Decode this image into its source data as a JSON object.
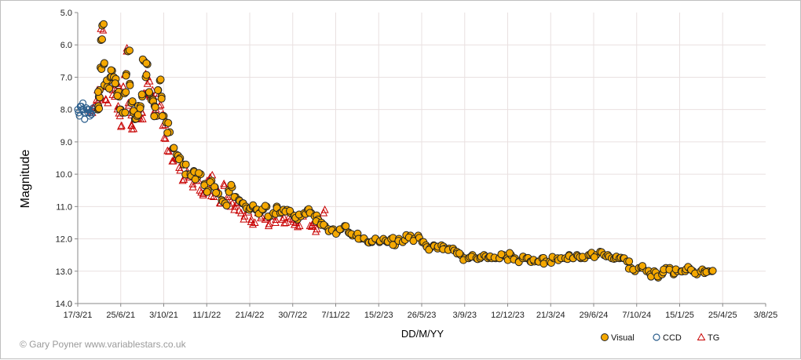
{
  "chart_data": {
    "type": "scatter",
    "title": "",
    "xlabel": "DD/M/YY",
    "ylabel": "Magnitude",
    "y_inverted": true,
    "ylim": [
      5.0,
      14.0
    ],
    "y_ticks": [
      "5.0",
      "6.0",
      "7.0",
      "8.0",
      "9.0",
      "10.0",
      "11.0",
      "12.0",
      "13.0",
      "14.0"
    ],
    "xlim": [
      "2021-03-17",
      "2025-08-03"
    ],
    "x_ticks": [
      "17/3/21",
      "25/6/21",
      "3/10/21",
      "11/1/22",
      "21/4/22",
      "30/7/22",
      "7/11/22",
      "15/2/23",
      "26/5/23",
      "3/9/23",
      "12/12/23",
      "21/3/24",
      "29/6/24",
      "7/10/24",
      "15/1/25",
      "25/4/25",
      "3/8/25"
    ],
    "grid": true,
    "legend_position": "bottom-right",
    "series": [
      {
        "name": "Visual",
        "marker": "circle",
        "color": "#f5a800",
        "edge": "#222222",
        "x": [
          "2021-05-03",
          "2021-05-04",
          "2021-05-05",
          "2021-05-07",
          "2021-05-09",
          "2021-05-10",
          "2021-05-13",
          "2021-05-17",
          "2021-05-21",
          "2021-05-25",
          "2021-05-28",
          "2021-06-01",
          "2021-06-05",
          "2021-06-09",
          "2021-06-13",
          "2021-06-17",
          "2021-06-21",
          "2021-06-25",
          "2021-06-30",
          "2021-07-04",
          "2021-07-08",
          "2021-07-12",
          "2021-07-16",
          "2021-07-20",
          "2021-07-24",
          "2021-07-28",
          "2021-08-02",
          "2021-08-06",
          "2021-08-10",
          "2021-08-14",
          "2021-08-18",
          "2021-08-22",
          "2021-08-26",
          "2021-08-31",
          "2021-09-04",
          "2021-09-08",
          "2021-09-12",
          "2021-09-16",
          "2021-09-20",
          "2021-09-24",
          "2021-09-28",
          "2021-10-03",
          "2021-10-09",
          "2021-10-17",
          "2021-10-25",
          "2021-11-02",
          "2021-11-10",
          "2021-11-18",
          "2021-11-26",
          "2021-12-04",
          "2021-12-12",
          "2021-12-20",
          "2021-12-28",
          "2022-01-06",
          "2022-01-14",
          "2022-01-22",
          "2022-01-30",
          "2022-02-07",
          "2022-02-15",
          "2022-02-23",
          "2022-03-03",
          "2022-03-11",
          "2022-03-19",
          "2022-03-27",
          "2022-04-04",
          "2022-04-12",
          "2022-04-20",
          "2022-04-28",
          "2022-05-06",
          "2022-05-14",
          "2022-05-22",
          "2022-05-30",
          "2022-06-07",
          "2022-06-15",
          "2022-06-23",
          "2022-07-01",
          "2022-07-09",
          "2022-07-17",
          "2022-07-25",
          "2022-08-02",
          "2022-08-10",
          "2022-08-18",
          "2022-08-26",
          "2022-09-03",
          "2022-09-11",
          "2022-09-19",
          "2022-09-27",
          "2022-10-05",
          "2022-10-13",
          "2022-10-21",
          "2022-11-01",
          "2022-11-10",
          "2022-11-19",
          "2022-11-28",
          "2022-12-07",
          "2022-12-16",
          "2022-12-25",
          "2023-01-03",
          "2023-01-12",
          "2023-01-21",
          "2023-01-30",
          "2023-02-08",
          "2023-02-17",
          "2023-02-26",
          "2023-03-07",
          "2023-03-16",
          "2023-03-25",
          "2023-04-03",
          "2023-04-12",
          "2023-04-21",
          "2023-04-30",
          "2023-05-09",
          "2023-05-18",
          "2023-05-27",
          "2023-06-05",
          "2023-06-14",
          "2023-06-23",
          "2023-07-02",
          "2023-07-11",
          "2023-07-20",
          "2023-07-29",
          "2023-08-07",
          "2023-08-16",
          "2023-08-25",
          "2023-09-03",
          "2023-09-12",
          "2023-09-21",
          "2023-09-30",
          "2023-10-09",
          "2023-10-18",
          "2023-10-27",
          "2023-11-05",
          "2023-11-14",
          "2023-11-23",
          "2023-12-02",
          "2023-12-11",
          "2023-12-20",
          "2023-12-29",
          "2024-01-07",
          "2024-01-16",
          "2024-01-25",
          "2024-02-03",
          "2024-02-12",
          "2024-02-21",
          "2024-03-01",
          "2024-03-10",
          "2024-03-19",
          "2024-03-28",
          "2024-04-06",
          "2024-04-15",
          "2024-04-24",
          "2024-05-03",
          "2024-05-12",
          "2024-05-21",
          "2024-05-30",
          "2024-06-08",
          "2024-06-17",
          "2024-06-26",
          "2024-07-05",
          "2024-07-14",
          "2024-07-23",
          "2024-08-01",
          "2024-08-10",
          "2024-08-19",
          "2024-08-28",
          "2024-09-06",
          "2024-09-15",
          "2024-09-24",
          "2024-10-03",
          "2024-10-12",
          "2024-10-21",
          "2024-10-30",
          "2024-11-08",
          "2024-11-17",
          "2024-11-26",
          "2024-12-05",
          "2024-12-14",
          "2024-12-23",
          "2025-01-01",
          "2025-01-10",
          "2025-01-19",
          "2025-01-28",
          "2025-02-06",
          "2025-02-15",
          "2025-02-24",
          "2025-03-05",
          "2025-03-14",
          "2025-03-23",
          "2025-03-31"
        ],
        "y": [
          8.0,
          7.9,
          7.6,
          7.4,
          6.7,
          5.85,
          5.4,
          6.6,
          7.2,
          7.3,
          7.1,
          7.0,
          6.8,
          7.0,
          7.2,
          7.5,
          7.6,
          8.0,
          8.1,
          7.5,
          6.9,
          6.2,
          7.2,
          7.8,
          8.1,
          8.3,
          8.2,
          7.9,
          7.9,
          7.6,
          6.5,
          7.0,
          6.6,
          7.5,
          7.7,
          7.7,
          7.9,
          8.2,
          7.4,
          7.1,
          7.6,
          8.2,
          8.4,
          8.7,
          9.2,
          9.4,
          9.5,
          9.7,
          10.0,
          10.0,
          9.9,
          10.1,
          10.0,
          10.3,
          10.5,
          10.2,
          10.4,
          10.6,
          10.8,
          10.9,
          10.5,
          10.4,
          10.7,
          10.8,
          10.9,
          11.0,
          11.1,
          11.0,
          11.1,
          11.2,
          11.1,
          11.0,
          11.3,
          11.2,
          11.0,
          11.2,
          11.1,
          11.1,
          11.2,
          11.3,
          11.4,
          11.3,
          11.2,
          11.1,
          11.2,
          11.3,
          11.4,
          11.5,
          11.6,
          11.7,
          11.7,
          11.8,
          11.7,
          11.6,
          11.8,
          11.9,
          11.9,
          12.0,
          12.0,
          12.1,
          12.1,
          12.0,
          12.1,
          12.0,
          12.1,
          12.0,
          12.2,
          12.0,
          12.1,
          11.9,
          11.9,
          12.0,
          11.9,
          12.1,
          12.2,
          12.3,
          12.2,
          12.3,
          12.2,
          12.3,
          12.3,
          12.3,
          12.4,
          12.5,
          12.6,
          12.6,
          12.5,
          12.6,
          12.6,
          12.5,
          12.6,
          12.6,
          12.6,
          12.6,
          12.5,
          12.6,
          12.5,
          12.6,
          12.7,
          12.6,
          12.6,
          12.7,
          12.7,
          12.7,
          12.6,
          12.7,
          12.7,
          12.6,
          12.6,
          12.6,
          12.6,
          12.5,
          12.6,
          12.5,
          12.6,
          12.6,
          12.5,
          12.5,
          12.5,
          12.4,
          12.5,
          12.5,
          12.6,
          12.6,
          12.6,
          12.6,
          12.7,
          12.9,
          13.0,
          12.9,
          12.9,
          13.0,
          13.1,
          13.0,
          13.2,
          13.1,
          12.9,
          12.9,
          13.1,
          13.0,
          13.0,
          13.0,
          12.9,
          13.0,
          13.1,
          13.0,
          13.0,
          13.0,
          13.0
        ],
        "jitter": 0.07
      },
      {
        "name": "CCD",
        "marker": "open-circle",
        "color": "#2b5e8c",
        "x": [
          "2021-03-17",
          "2021-03-19",
          "2021-03-21",
          "2021-03-23",
          "2021-03-25",
          "2021-03-27",
          "2021-03-29",
          "2021-03-31",
          "2021-04-02",
          "2021-04-04",
          "2021-04-06",
          "2021-04-08",
          "2021-04-10",
          "2021-04-12",
          "2021-04-14",
          "2021-04-16",
          "2021-04-18",
          "2021-04-20",
          "2021-04-22",
          "2021-04-24"
        ],
        "y": [
          8.0,
          8.1,
          8.2,
          7.9,
          7.9,
          8.0,
          7.8,
          8.0,
          8.3,
          8.1,
          7.95,
          8.0,
          8.1,
          8.0,
          8.2,
          8.1,
          8.15,
          8.05,
          7.95,
          8.0
        ]
      },
      {
        "name": "TG",
        "marker": "open-triangle",
        "color": "#c80000",
        "x": [
          "2021-04-20",
          "2021-04-25",
          "2021-04-30",
          "2021-05-05",
          "2021-05-10",
          "2021-05-15",
          "2021-05-18",
          "2021-05-22",
          "2021-05-26",
          "2021-05-30",
          "2021-06-03",
          "2021-06-07",
          "2021-06-11",
          "2021-06-15",
          "2021-06-19",
          "2021-06-23",
          "2021-06-27",
          "2021-07-01",
          "2021-07-05",
          "2021-07-09",
          "2021-07-13",
          "2021-07-17",
          "2021-07-21",
          "2021-07-25",
          "2021-07-29",
          "2021-08-02",
          "2021-08-06",
          "2021-08-10",
          "2021-08-14",
          "2021-08-18",
          "2021-08-22",
          "2021-08-26",
          "2021-08-30",
          "2021-09-03",
          "2021-09-07",
          "2021-09-11",
          "2021-09-15",
          "2021-09-19",
          "2021-09-23",
          "2021-09-27",
          "2021-10-01",
          "2021-10-07",
          "2021-10-15",
          "2021-10-23",
          "2021-10-31",
          "2021-11-08",
          "2021-11-16",
          "2021-11-24",
          "2021-12-02",
          "2021-12-10",
          "2021-12-18",
          "2021-12-26",
          "2022-01-03",
          "2022-01-11",
          "2022-01-19",
          "2022-01-27",
          "2022-02-04",
          "2022-02-12",
          "2022-02-20",
          "2022-02-28",
          "2022-03-08",
          "2022-03-16",
          "2022-03-24",
          "2022-04-01",
          "2022-04-09",
          "2022-04-17",
          "2022-04-25",
          "2022-05-03",
          "2022-05-11",
          "2022-05-19",
          "2022-05-27",
          "2022-06-04",
          "2022-06-12",
          "2022-06-20",
          "2022-06-28",
          "2022-07-06",
          "2022-07-14",
          "2022-07-22",
          "2022-07-30",
          "2022-08-07",
          "2022-08-15",
          "2022-08-23",
          "2022-08-31",
          "2022-09-08",
          "2022-09-16",
          "2022-09-24",
          "2022-10-02",
          "2022-10-10"
        ],
        "y": [
          8.1,
          7.9,
          7.7,
          7.4,
          7.6,
          5.55,
          7.3,
          7.7,
          7.8,
          7.3,
          7.0,
          7.4,
          7.6,
          7.2,
          7.9,
          8.2,
          8.5,
          7.3,
          6.9,
          6.2,
          7.8,
          8.1,
          8.5,
          8.6,
          8.3,
          8.0,
          8.2,
          8.3,
          8.1,
          7.5,
          6.9,
          7.2,
          7.5,
          7.6,
          7.4,
          7.8,
          8.0,
          7.6,
          7.9,
          8.2,
          8.5,
          8.9,
          9.3,
          9.6,
          9.5,
          9.8,
          10.2,
          10.0,
          10.1,
          10.4,
          10.2,
          10.5,
          10.6,
          10.3,
          10.1,
          10.7,
          10.5,
          10.9,
          10.3,
          10.8,
          11.0,
          11.1,
          10.9,
          11.2,
          11.3,
          11.1,
          11.4,
          11.5,
          11.2,
          11.3,
          11.4,
          11.6,
          11.3,
          11.5,
          11.2,
          11.4,
          11.5,
          11.3,
          11.4,
          11.5,
          11.6,
          11.3,
          11.2,
          11.6,
          11.5,
          11.7,
          11.4,
          11.2
        ],
        "jitter": 0.1
      }
    ]
  },
  "credit": "© Gary Poyner www.variablestars.co.uk"
}
